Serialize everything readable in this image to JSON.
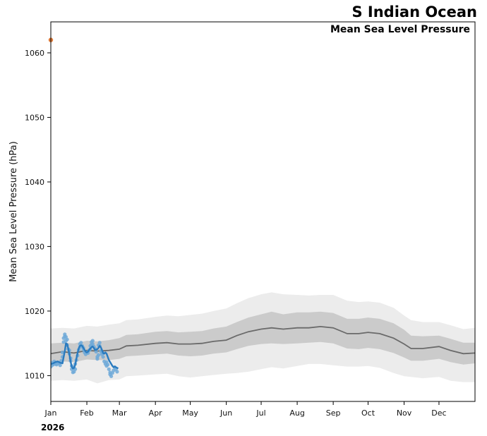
{
  "chart_data": {
    "type": "line",
    "title": "S Indian Ocean",
    "subtitle": "Mean Sea Level Pressure",
    "ylabel": "Mean Sea Level Pressure (hPa)",
    "year_label": "2026",
    "ylim": [
      1006,
      1064.8
    ],
    "xlim": [
      0,
      365
    ],
    "y_ticks": [
      1010,
      1020,
      1030,
      1040,
      1050,
      1060
    ],
    "x_ticks": [
      {
        "label": "Jan",
        "day": 0
      },
      {
        "label": "Feb",
        "day": 31
      },
      {
        "label": "Mar",
        "day": 59
      },
      {
        "label": "Apr",
        "day": 90
      },
      {
        "label": "May",
        "day": 120
      },
      {
        "label": "Jun",
        "day": 151
      },
      {
        "label": "Jul",
        "day": 181
      },
      {
        "label": "Aug",
        "day": 212
      },
      {
        "label": "Sep",
        "day": 243
      },
      {
        "label": "Oct",
        "day": 273
      },
      {
        "label": "Nov",
        "day": 304
      },
      {
        "label": "Dec",
        "day": 334
      }
    ],
    "colors": {
      "band_outer": "#ececec",
      "band_inner": "#cbcbcb",
      "mean_line": "#6a6a6a",
      "current_line": "#2a7bbf",
      "current_points": "#6fa9d8",
      "record_marker": "#e07b39"
    },
    "climatology": {
      "x": [
        0,
        10,
        20,
        31,
        40,
        50,
        59,
        65,
        75,
        90,
        100,
        110,
        120,
        130,
        140,
        151,
        160,
        170,
        181,
        190,
        200,
        212,
        222,
        232,
        243,
        255,
        265,
        273,
        283,
        295,
        304,
        310,
        320,
        334,
        344,
        355,
        365
      ],
      "mean": [
        1013.4,
        1013.7,
        1013.5,
        1013.9,
        1013.8,
        1013.9,
        1014.1,
        1014.6,
        1014.7,
        1015.0,
        1015.1,
        1014.9,
        1014.9,
        1015.0,
        1015.3,
        1015.5,
        1016.2,
        1016.8,
        1017.2,
        1017.4,
        1017.2,
        1017.4,
        1017.4,
        1017.6,
        1017.4,
        1016.5,
        1016.5,
        1016.7,
        1016.5,
        1015.8,
        1014.9,
        1014.2,
        1014.2,
        1014.5,
        1013.9,
        1013.4,
        1013.5
      ],
      "p25": [
        1012.0,
        1012.2,
        1012.1,
        1012.5,
        1012.4,
        1012.4,
        1012.6,
        1013.0,
        1013.1,
        1013.3,
        1013.4,
        1013.1,
        1013.0,
        1013.1,
        1013.4,
        1013.6,
        1014.1,
        1014.6,
        1014.9,
        1015.0,
        1014.9,
        1015.0,
        1015.1,
        1015.2,
        1015.0,
        1014.2,
        1014.1,
        1014.3,
        1014.1,
        1013.5,
        1012.8,
        1012.3,
        1012.3,
        1012.6,
        1012.1,
        1011.7,
        1011.9
      ],
      "p75": [
        1015.0,
        1015.1,
        1015.0,
        1015.4,
        1015.3,
        1015.5,
        1015.8,
        1016.3,
        1016.4,
        1016.8,
        1016.9,
        1016.7,
        1016.8,
        1016.9,
        1017.3,
        1017.6,
        1018.3,
        1019.0,
        1019.5,
        1019.9,
        1019.5,
        1019.8,
        1019.8,
        1019.9,
        1019.7,
        1018.8,
        1018.8,
        1019.0,
        1018.8,
        1018.1,
        1017.1,
        1016.2,
        1016.1,
        1016.2,
        1015.7,
        1015.1,
        1015.1
      ],
      "p05": [
        1009.2,
        1009.3,
        1009.2,
        1009.4,
        1008.8,
        1009.3,
        1009.4,
        1009.9,
        1010.0,
        1010.2,
        1010.3,
        1009.9,
        1009.7,
        1009.9,
        1010.1,
        1010.3,
        1010.4,
        1010.6,
        1011.0,
        1011.3,
        1011.1,
        1011.5,
        1011.8,
        1011.8,
        1011.6,
        1011.4,
        1011.4,
        1011.5,
        1011.2,
        1010.4,
        1009.9,
        1009.8,
        1009.6,
        1009.8,
        1009.2,
        1009.0,
        1009.0
      ],
      "p95": [
        1017.3,
        1017.4,
        1017.3,
        1017.7,
        1017.6,
        1017.9,
        1018.1,
        1018.6,
        1018.7,
        1019.1,
        1019.3,
        1019.2,
        1019.4,
        1019.6,
        1020.0,
        1020.4,
        1021.2,
        1022.0,
        1022.6,
        1022.9,
        1022.6,
        1022.5,
        1022.4,
        1022.5,
        1022.5,
        1021.6,
        1021.4,
        1021.5,
        1021.3,
        1020.5,
        1019.3,
        1018.6,
        1018.3,
        1018.3,
        1017.8,
        1017.2,
        1017.4
      ]
    },
    "current_year": {
      "x": [
        0,
        2,
        4,
        6,
        8,
        10,
        12,
        13,
        14,
        15,
        16,
        17,
        18,
        19,
        20,
        21,
        22,
        23,
        24,
        25,
        26,
        27,
        28,
        29,
        30,
        31,
        32,
        33,
        34,
        35,
        36,
        37,
        38,
        39,
        40,
        41,
        42,
        43,
        44,
        45,
        46,
        47,
        48,
        49,
        50,
        51,
        52,
        53,
        54,
        55,
        56,
        57,
        58
      ],
      "values": [
        1011.8,
        1011.9,
        1012.1,
        1012.2,
        1012.0,
        1011.9,
        1013.8,
        1015.0,
        1014.9,
        1014.2,
        1013.3,
        1012.2,
        1011.4,
        1011.1,
        1011.2,
        1011.7,
        1012.6,
        1013.5,
        1014.2,
        1014.6,
        1014.7,
        1014.6,
        1014.3,
        1014.0,
        1013.7,
        1013.6,
        1013.7,
        1014.0,
        1014.2,
        1014.4,
        1014.5,
        1014.3,
        1014.0,
        1014.0,
        1014.1,
        1014.3,
        1014.6,
        1014.4,
        1014.0,
        1013.5,
        1013.4,
        1013.6,
        1013.4,
        1012.9,
        1012.4,
        1012.1,
        1011.8,
        1011.5,
        1011.3,
        1011.4,
        1011.3,
        1011.2,
        1011.1
      ]
    },
    "observations": {
      "x": [
        0,
        1,
        1,
        2,
        3,
        4,
        5,
        6,
        7,
        8,
        9,
        10,
        10,
        11,
        11,
        12,
        12,
        13,
        13,
        14,
        14,
        15,
        16,
        16,
        17,
        17,
        18,
        18,
        19,
        19,
        20,
        20,
        21,
        21,
        22,
        23,
        24,
        25,
        25,
        26,
        27,
        28,
        28,
        29,
        30,
        31,
        32,
        33,
        34,
        34,
        35,
        35,
        36,
        36,
        37,
        38,
        39,
        40,
        40,
        41,
        41,
        42,
        42,
        43,
        44,
        44,
        45,
        45,
        46,
        47,
        48,
        48,
        49,
        50,
        51,
        51,
        52,
        53,
        54,
        55,
        56,
        57
      ],
      "values": [
        1011.4,
        1011.6,
        1012.0,
        1011.7,
        1012.2,
        1011.8,
        1011.7,
        1012.0,
        1011.9,
        1011.6,
        1012.3,
        1012.9,
        1013.6,
        1015.2,
        1015.8,
        1016.1,
        1016.4,
        1015.4,
        1016.0,
        1014.7,
        1015.6,
        1014.1,
        1013.4,
        1013.9,
        1012.7,
        1012.3,
        1011.5,
        1011.0,
        1010.5,
        1011.3,
        1010.6,
        1011.2,
        1011.0,
        1011.8,
        1012.4,
        1013.1,
        1014.0,
        1014.4,
        1014.9,
        1015.1,
        1014.6,
        1014.3,
        1014.0,
        1013.6,
        1013.3,
        1013.6,
        1013.5,
        1013.9,
        1014.1,
        1014.6,
        1014.8,
        1015.2,
        1014.9,
        1015.4,
        1014.5,
        1014.2,
        1013.7,
        1012.9,
        1012.6,
        1013.2,
        1014.7,
        1015.1,
        1014.6,
        1013.8,
        1013.3,
        1013.6,
        1012.9,
        1013.5,
        1012.2,
        1011.8,
        1011.5,
        1012.1,
        1011.7,
        1011.0,
        1010.5,
        1010.2,
        1009.9,
        1010.4,
        1010.8,
        1011.3,
        1011.0,
        1010.6
      ]
    },
    "record_marker": {
      "x": 0,
      "value": 1062
    }
  }
}
